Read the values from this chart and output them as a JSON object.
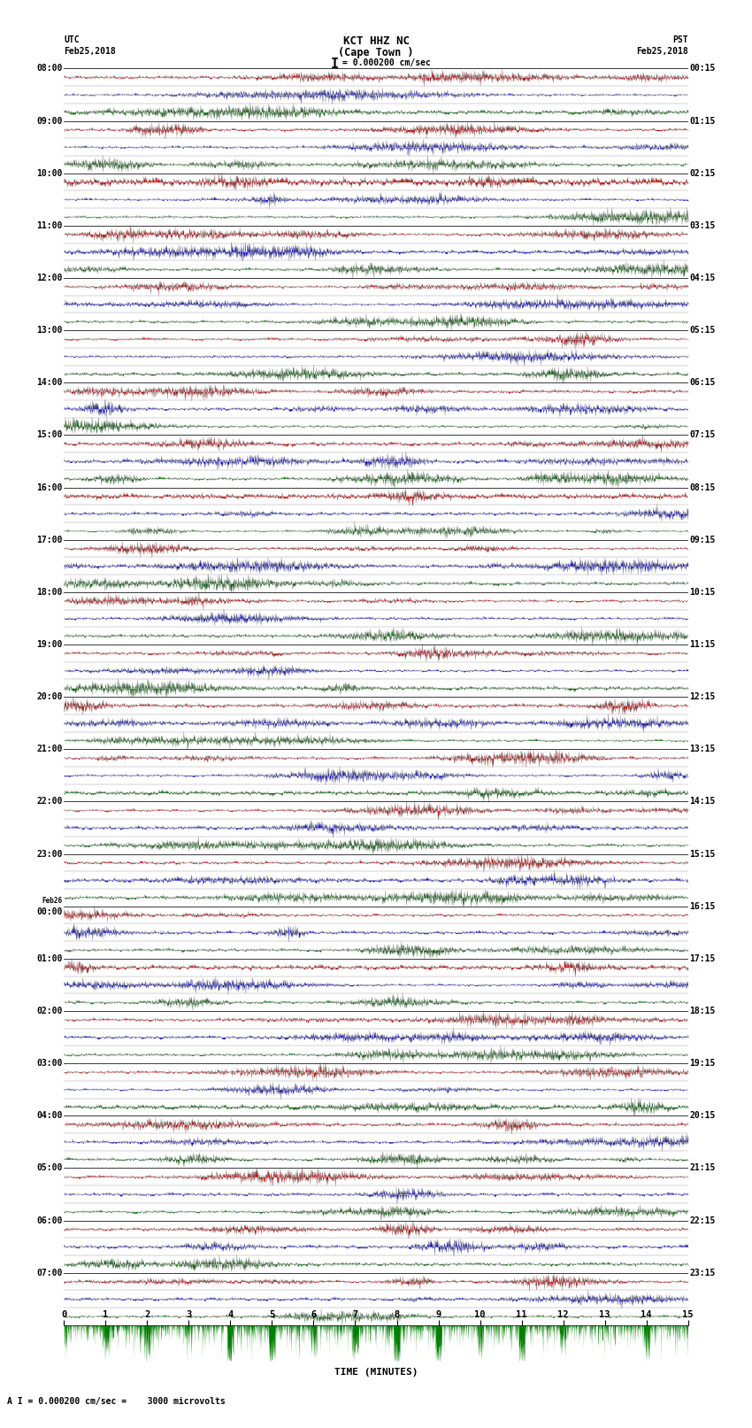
{
  "title_line1": "KCT HHZ NC",
  "title_line2": "(Cape Town )",
  "scale_label": "I = 0.000200 cm/sec",
  "footer_note": "A I = 0.000200 cm/sec =    3000 microvolts",
  "xlabel": "TIME (MINUTES)",
  "left_times": [
    "08:00",
    "09:00",
    "10:00",
    "11:00",
    "12:00",
    "13:00",
    "14:00",
    "15:00",
    "16:00",
    "17:00",
    "18:00",
    "19:00",
    "20:00",
    "21:00",
    "22:00",
    "23:00",
    "Feb26\n00:00",
    "01:00",
    "02:00",
    "03:00",
    "04:00",
    "05:00",
    "06:00",
    "07:00"
  ],
  "right_times": [
    "00:15",
    "01:15",
    "02:15",
    "03:15",
    "04:15",
    "05:15",
    "06:15",
    "07:15",
    "08:15",
    "09:15",
    "10:15",
    "11:15",
    "12:15",
    "13:15",
    "14:15",
    "15:15",
    "16:15",
    "17:15",
    "18:15",
    "19:15",
    "20:15",
    "21:15",
    "22:15",
    "23:15"
  ],
  "n_rows": 24,
  "n_sub": 3,
  "n_cols": 3000,
  "time_min": 0,
  "time_max": 15,
  "bg_color": "#ffffff",
  "sub_colors": [
    "red",
    "blue",
    "green"
  ],
  "figsize": [
    8.5,
    16.13
  ],
  "dpi": 100
}
